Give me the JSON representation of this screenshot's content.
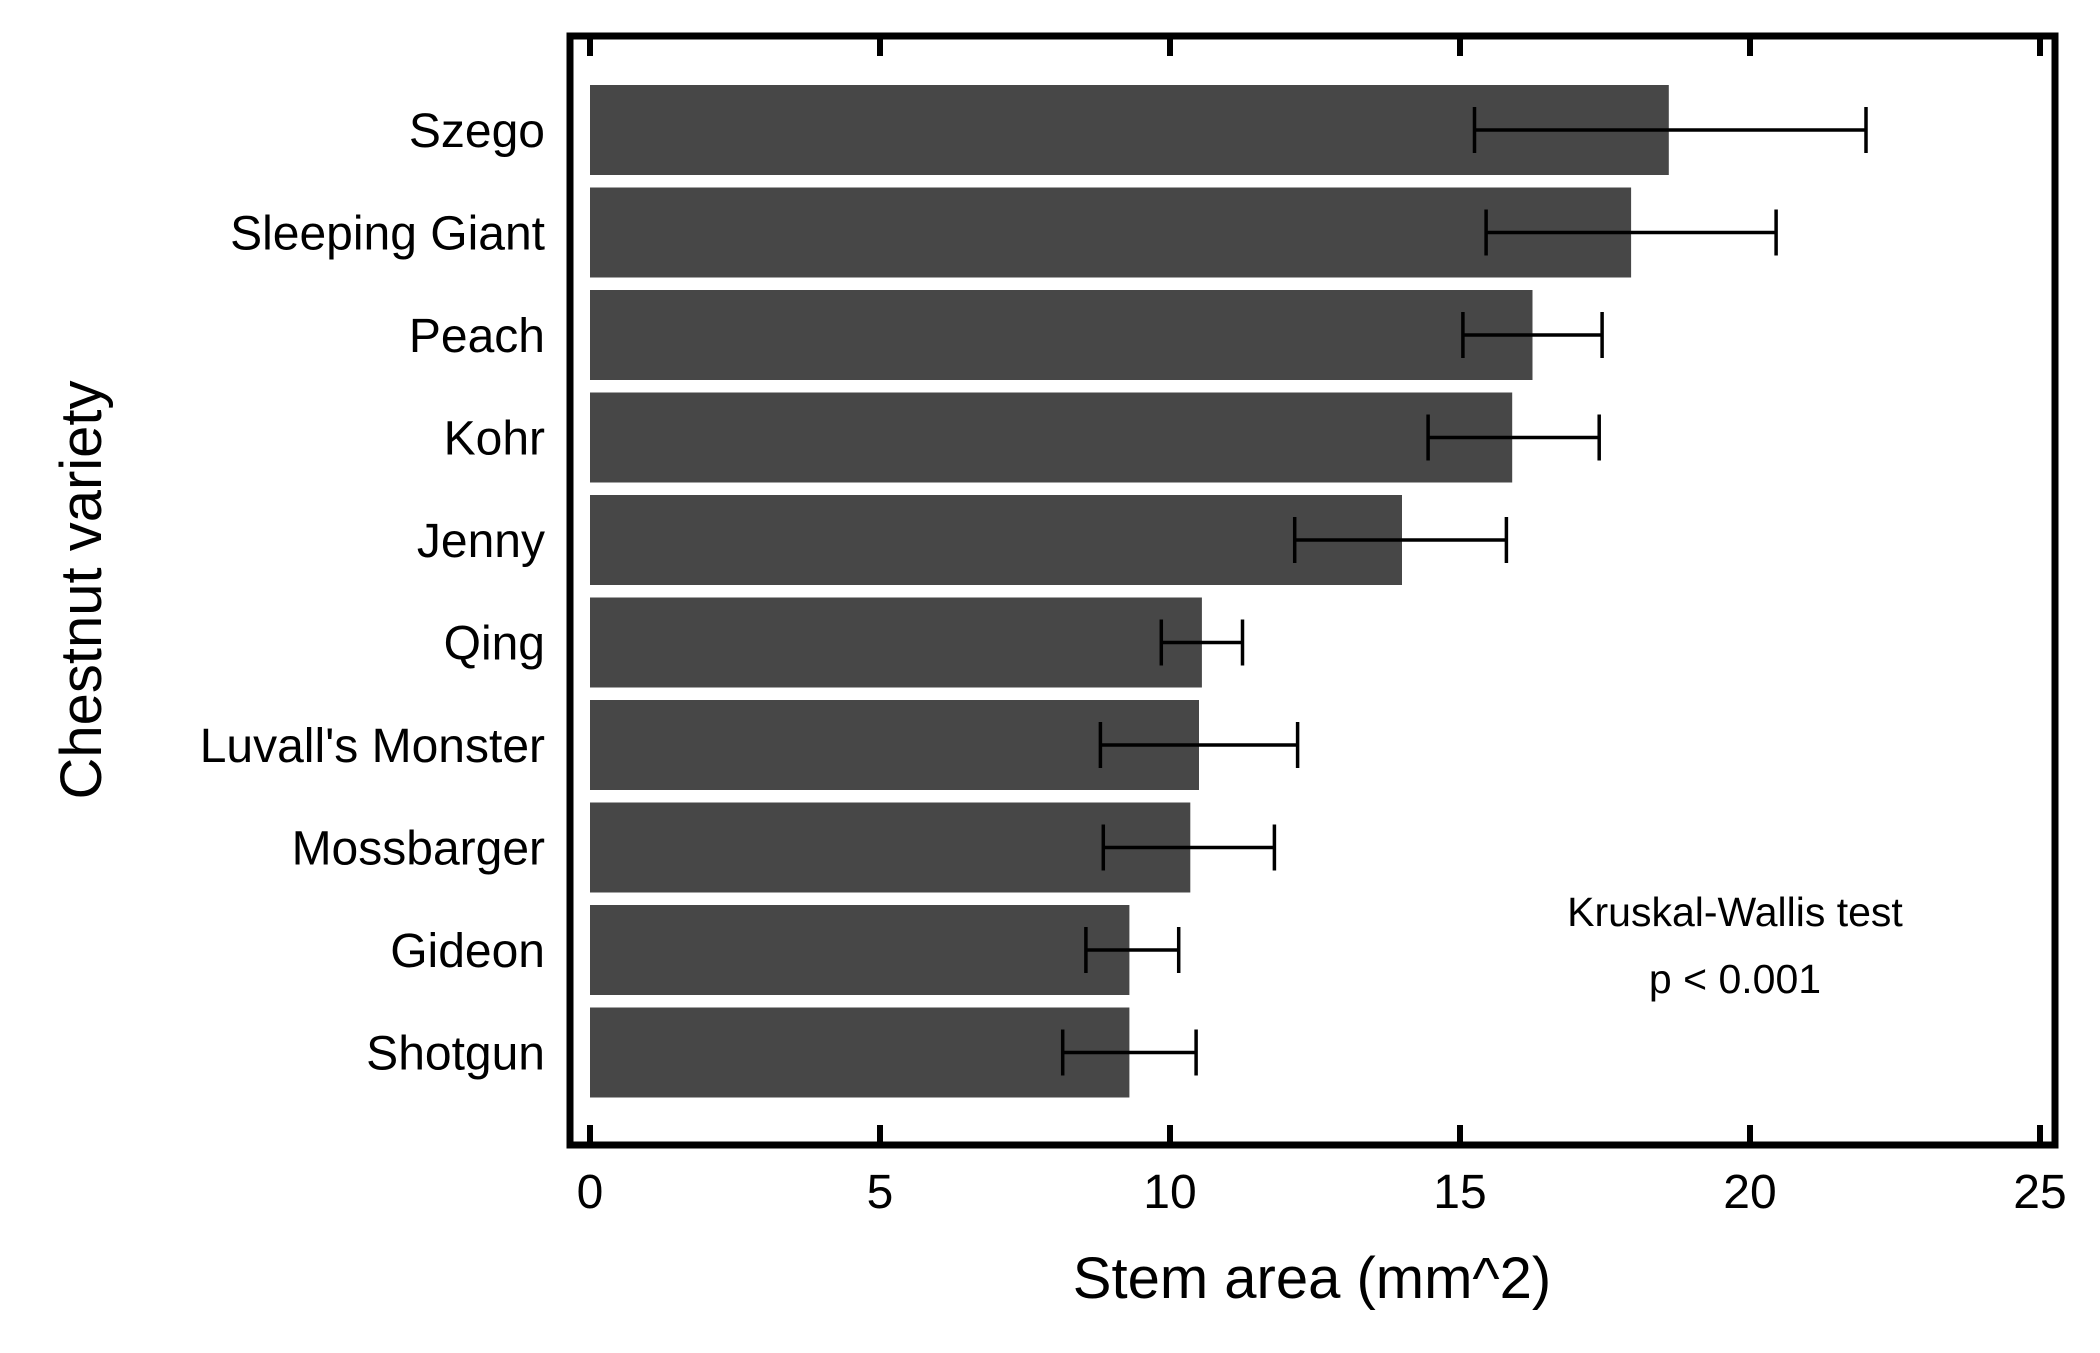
{
  "chart_data": {
    "type": "bar",
    "orientation": "horizontal",
    "categories": [
      "Szego",
      "Sleeping Giant",
      "Peach",
      "Kohr",
      "Jenny",
      "Qing",
      "Luvall's Monster",
      "Mossbarger",
      "Gideon",
      "Shotgun"
    ],
    "values": [
      18.6,
      17.95,
      16.25,
      15.9,
      14.0,
      10.55,
      10.5,
      10.35,
      9.3,
      9.3
    ],
    "error_low": [
      15.25,
      15.45,
      15.05,
      14.45,
      12.15,
      9.85,
      8.8,
      8.85,
      8.55,
      8.15
    ],
    "error_high": [
      22.0,
      20.45,
      17.45,
      17.4,
      15.8,
      11.25,
      12.2,
      11.8,
      10.15,
      10.45
    ],
    "xlabel": "Stem area (mm^2)",
    "ylabel": "Chestnut variety",
    "xlim": [
      -0.3,
      25.3
    ],
    "xticks": [
      0,
      5,
      10,
      15,
      20,
      25
    ],
    "grid": false,
    "bar_color": "#474747",
    "error_bar_color": "#000000",
    "annotation": [
      "Kruskal-Wallis test",
      "p < 0.001"
    ]
  }
}
